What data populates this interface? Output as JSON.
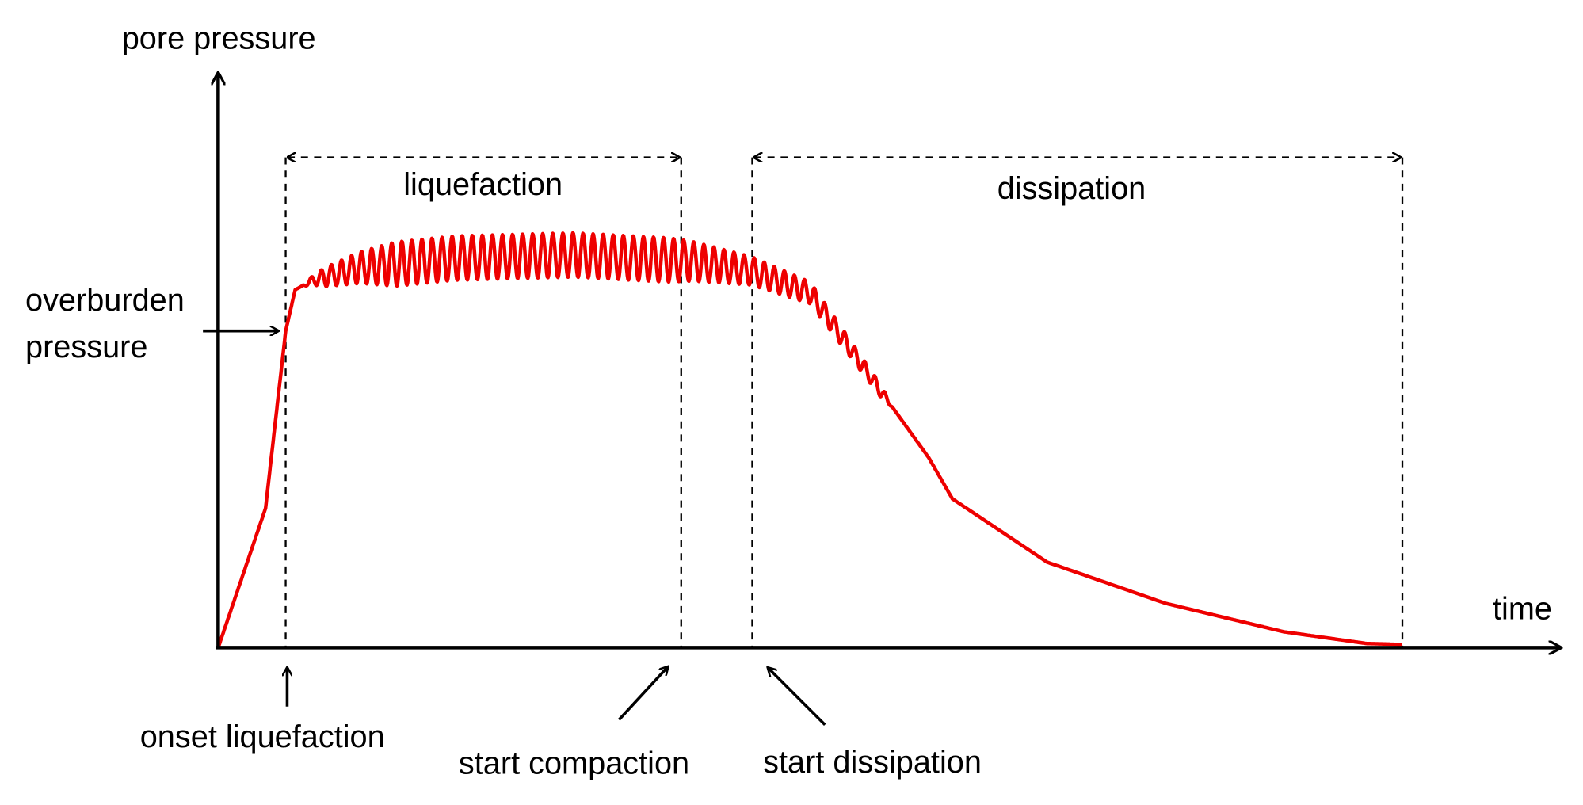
{
  "chart_data": {
    "type": "line",
    "title": "",
    "xlabel": "time",
    "ylabel": "pore pressure",
    "xlim": [
      0,
      113
    ],
    "ylim": [
      0,
      1.82
    ],
    "grid": false,
    "series_color": "#ee0000",
    "series": [
      {
        "name": "pore pressure",
        "base_points": [
          [
            0,
            0
          ],
          [
            4,
            0.44
          ],
          [
            5.7,
            1.0
          ],
          [
            6.5,
            1.13
          ],
          [
            8,
            1.16
          ],
          [
            12,
            1.2
          ],
          [
            20,
            1.23
          ],
          [
            30,
            1.24
          ],
          [
            40,
            1.22
          ],
          [
            45,
            1.19
          ],
          [
            50,
            1.12
          ],
          [
            55,
            0.86
          ],
          [
            60,
            0.6
          ],
          [
            62,
            0.47
          ],
          [
            70,
            0.27
          ],
          [
            80,
            0.14
          ],
          [
            90,
            0.05
          ],
          [
            97,
            0.013
          ],
          [
            100,
            0.01
          ]
        ],
        "oscillation": {
          "period": 0.85,
          "amplitude_points": [
            [
              7,
              0
            ],
            [
              9,
              0.03
            ],
            [
              15,
              0.07
            ],
            [
              38,
              0.07
            ],
            [
              45,
              0.045
            ],
            [
              52,
              0.03
            ],
            [
              56,
              0.02
            ],
            [
              57,
              0
            ]
          ]
        }
      }
    ],
    "reference_lines": [
      {
        "t": 5.7,
        "label": "onset liquefaction"
      },
      {
        "t": 39.1,
        "label": "start compaction"
      },
      {
        "t": 45.1,
        "label": "start dissipation"
      },
      {
        "t": 100,
        "label": ""
      }
    ],
    "spans": [
      {
        "from": 5.7,
        "to": 39.1,
        "label": "liquefaction"
      },
      {
        "from": 45.1,
        "to": 100,
        "label": "dissipation"
      }
    ],
    "annotations": {
      "overburden_line1": "overburden",
      "overburden_line2": "pressure",
      "overburden_value": 1.0
    }
  }
}
